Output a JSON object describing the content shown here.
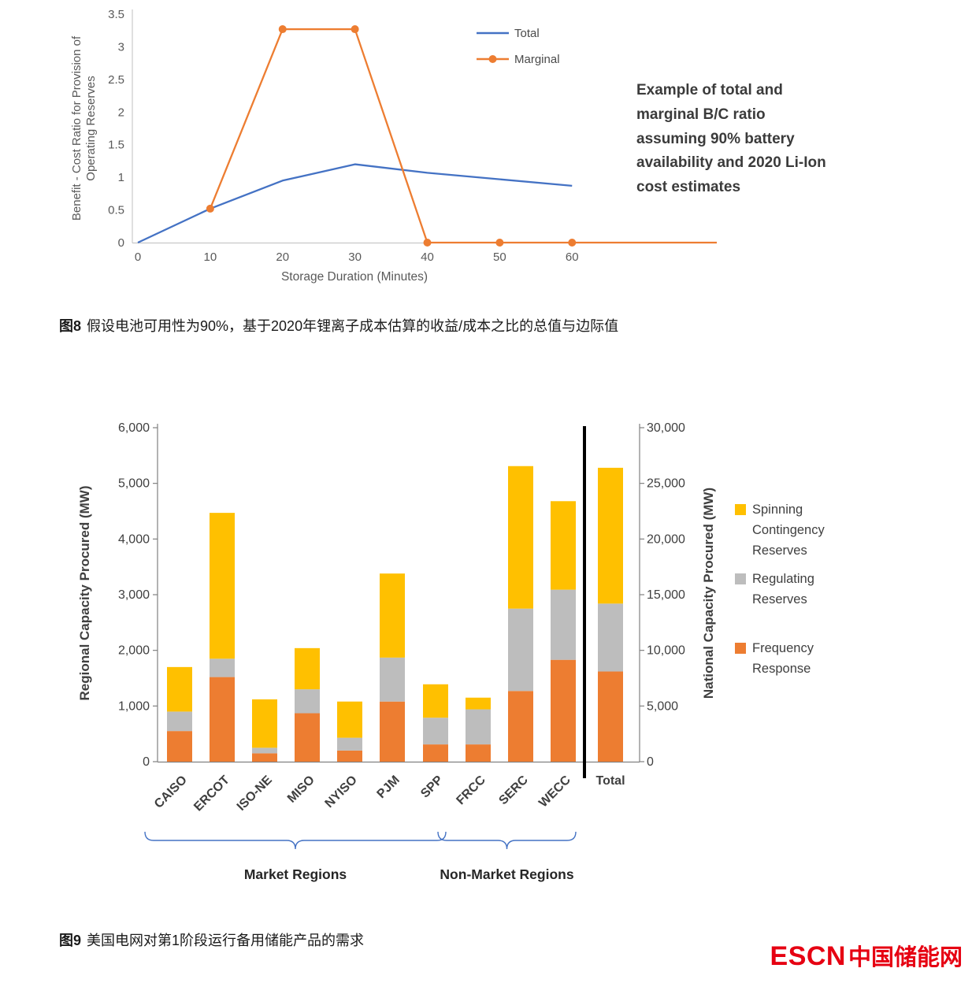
{
  "captions": {
    "fig8": {
      "tag": "图8",
      "text": "假设电池可用性为90%，基于2020年锂离子成本估算的收益/成本之比的总值与边际值"
    },
    "fig9": {
      "tag": "图9",
      "text": "美国电网对第1阶段运行备用储能产品的需求"
    }
  },
  "logo": {
    "escn": "ESCN",
    "cn": "中国储能网",
    "color": "#E60012"
  },
  "chart_data": [
    {
      "type": "line",
      "title": "",
      "xlabel": "Storage Duration (Minutes)",
      "ylabel_lines": [
        "Benefit - Cost Ratio for Provision of",
        "Operating Reserves"
      ],
      "xlim": [
        0,
        80
      ],
      "ylim": [
        0,
        3.5
      ],
      "xticks": [
        0,
        10,
        20,
        30,
        40,
        50,
        60
      ],
      "yticks": [
        0,
        0.5,
        1,
        1.5,
        2,
        2.5,
        3,
        3.5
      ],
      "ytick_labels": [
        "0",
        "0.5",
        "1",
        "1.5",
        "2",
        "2.5",
        "3",
        "3.5"
      ],
      "grid": false,
      "legend_position": "top-right",
      "annotation": "Example of total and marginal B/C ratio assuming 90% battery availability and 2020 Li-Ion cost estimates",
      "series": [
        {
          "name": "Total",
          "color": "#4472C4",
          "markers": false,
          "x": [
            0,
            10,
            20,
            30,
            40,
            50,
            60
          ],
          "y": [
            0,
            0.52,
            0.95,
            1.2,
            1.07,
            0.97,
            0.87
          ]
        },
        {
          "name": "Marginal",
          "color": "#ED7D31",
          "markers": true,
          "x": [
            10,
            20,
            30,
            40,
            50,
            60,
            80
          ],
          "y": [
            0.52,
            3.27,
            3.27,
            0,
            0,
            0,
            0
          ],
          "marker_x": [
            10,
            20,
            30,
            40,
            50,
            60
          ],
          "marker_y": [
            0.52,
            3.27,
            3.27,
            0,
            0,
            0
          ]
        }
      ]
    },
    {
      "type": "stacked-bar",
      "ylabel_left": "Regional Capacity Procured (MW)",
      "ylabel_right": "National Capacity Procured (MW)",
      "ylim_left": [
        0,
        6000
      ],
      "ylim_right": [
        0,
        30000
      ],
      "ytick_labels_left": [
        "0",
        "1,000",
        "2,000",
        "3,000",
        "4,000",
        "5,000",
        "6,000"
      ],
      "ytick_labels_right": [
        "0",
        "5,000",
        "10,000",
        "15,000",
        "20,000",
        "25,000",
        "30,000"
      ],
      "categories": [
        "CAISO",
        "ERCOT",
        "ISO-NE",
        "MISO",
        "NYISO",
        "PJM",
        "SPP",
        "FRCC",
        "SERC",
        "WECC"
      ],
      "total_category": "Total",
      "grid": false,
      "series": [
        {
          "name": "Frequency Response",
          "color": "#ED7D31",
          "values": [
            550,
            1520,
            150,
            870,
            200,
            1080,
            310,
            310,
            1270,
            1830
          ],
          "total_national": 8100
        },
        {
          "name": "Regulating Reserves",
          "color": "#BDBDBD",
          "values": [
            350,
            330,
            100,
            430,
            230,
            790,
            480,
            630,
            1480,
            1260
          ],
          "total_national": 6100
        },
        {
          "name": "Spinning Contingency Reserves",
          "color": "#FFC000",
          "values": [
            800,
            2620,
            870,
            740,
            650,
            1510,
            600,
            210,
            2560,
            1590
          ],
          "total_national": 12200
        }
      ],
      "legend_items": [
        {
          "color": "#FFC000",
          "lines": [
            "Spinning",
            "Contingency",
            "Reserves"
          ]
        },
        {
          "color": "#BDBDBD",
          "lines": [
            "Regulating",
            "Reserves"
          ]
        },
        {
          "color": "#ED7D31",
          "lines": [
            "Frequency",
            "Response"
          ]
        }
      ],
      "groups": [
        {
          "label": "Market Regions",
          "categories": [
            "CAISO",
            "ERCOT",
            "ISO-NE",
            "MISO",
            "NYISO",
            "PJM",
            "SPP"
          ]
        },
        {
          "label": "Non-Market Regions",
          "categories": [
            "FRCC",
            "SERC",
            "WECC"
          ]
        }
      ]
    }
  ]
}
